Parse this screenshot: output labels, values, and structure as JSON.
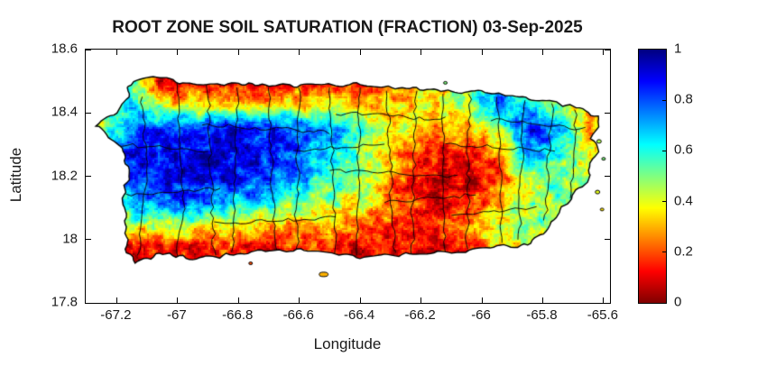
{
  "title": "ROOT ZONE SOIL SATURATION (FRACTION) 03-Sep-2025",
  "axes": {
    "xlabel": "Longitude",
    "ylabel": "Latitude",
    "xlim": [
      -67.302,
      -65.579
    ],
    "ylim": [
      17.8,
      18.6
    ],
    "xticks": [
      -67.2,
      -67,
      -66.8,
      -66.6,
      -66.4,
      -66.2,
      -66,
      -65.8,
      -65.6
    ],
    "xtick_labels": [
      "-67.2",
      "-67",
      "-66.8",
      "-66.6",
      "-66.4",
      "-66.2",
      "-66",
      "-65.8",
      "-65.6"
    ],
    "yticks": [
      18.6,
      18.4,
      18.2,
      18,
      17.8
    ],
    "ytick_labels": [
      "18.6",
      "18.4",
      "18.2",
      "18",
      "17.8"
    ]
  },
  "colorbar": {
    "min": 0,
    "max": 1,
    "ticks": [
      0,
      0.2,
      0.4,
      0.6,
      0.8,
      1
    ],
    "tick_labels": [
      "0",
      "0.2",
      "0.4",
      "0.6",
      "0.8",
      "1"
    ],
    "colors_bottom_to_top": [
      "#800000",
      "#ff0000",
      "#ff8000",
      "#ffff00",
      "#80ff80",
      "#00ffff",
      "#0080ff",
      "#0000ff",
      "#000080"
    ]
  },
  "chart_data": {
    "type": "heatmap",
    "title": "ROOT ZONE SOIL SATURATION (FRACTION) 03-Sep-2025",
    "value_name": "root zone soil saturation fraction",
    "region": "Puerto Rico",
    "colormap": "jet-reversed (1=dark blue wet, 0=dark red dry)",
    "value_range": [
      0,
      1
    ],
    "grid": {
      "lons": [
        -67.25,
        -67.15,
        -67.05,
        -66.95,
        -66.85,
        -66.75,
        -66.65,
        -66.55,
        -66.45,
        -66.35,
        -66.25,
        -66.15,
        -66.05,
        -65.95,
        -65.85,
        -65.75,
        -65.65
      ],
      "lats": [
        18.5,
        18.425,
        18.35,
        18.275,
        18.2,
        18.125,
        18.05,
        17.975,
        17.9
      ],
      "values": [
        [
          0.4,
          0.55,
          0.12,
          0.1,
          0.12,
          0.1,
          0.15,
          0.12,
          0.18,
          0.22,
          0.25,
          0.3,
          0.45,
          0.7,
          0.35,
          0.3,
          0.35
        ],
        [
          0.55,
          0.6,
          0.4,
          0.35,
          0.4,
          0.35,
          0.38,
          0.33,
          0.36,
          0.3,
          0.33,
          0.38,
          0.5,
          0.8,
          0.6,
          0.5,
          0.33
        ],
        [
          0.45,
          0.8,
          0.88,
          0.85,
          0.88,
          0.85,
          0.82,
          0.75,
          0.65,
          0.5,
          0.38,
          0.28,
          0.3,
          0.45,
          0.88,
          0.75,
          0.3
        ],
        [
          0.62,
          0.88,
          0.93,
          0.9,
          0.9,
          0.88,
          0.82,
          0.72,
          0.58,
          0.42,
          0.22,
          0.12,
          0.12,
          0.22,
          0.8,
          0.6,
          0.38
        ],
        [
          0.58,
          0.85,
          0.9,
          0.9,
          0.88,
          0.85,
          0.78,
          0.62,
          0.52,
          0.38,
          0.18,
          0.08,
          0.08,
          0.15,
          0.5,
          0.55,
          0.45
        ],
        [
          0.48,
          0.72,
          0.8,
          0.78,
          0.72,
          0.68,
          0.58,
          0.48,
          0.45,
          0.32,
          0.18,
          0.1,
          0.15,
          0.28,
          0.42,
          0.52,
          0.45
        ],
        [
          0.35,
          0.45,
          0.48,
          0.45,
          0.4,
          0.35,
          0.3,
          0.32,
          0.28,
          0.22,
          0.18,
          0.15,
          0.22,
          0.4,
          0.55,
          0.48,
          0.4
        ],
        [
          0.12,
          0.15,
          0.12,
          0.15,
          0.18,
          0.12,
          0.15,
          0.18,
          0.15,
          0.12,
          0.1,
          0.12,
          0.18,
          0.32,
          0.38,
          0.32,
          0.3
        ],
        [
          0.06,
          0.08,
          0.06,
          0.08,
          0.1,
          0.08,
          0.08,
          0.1,
          0.08,
          0.08,
          0.08,
          0.1,
          0.12,
          0.22,
          0.28,
          0.26,
          0.25
        ]
      ]
    }
  },
  "map": {
    "outline": [
      [
        -67.165,
        18.49
      ],
      [
        -67.08,
        18.515
      ],
      [
        -66.95,
        18.49
      ],
      [
        -66.8,
        18.49
      ],
      [
        -66.7,
        18.485
      ],
      [
        -66.55,
        18.485
      ],
      [
        -66.4,
        18.49
      ],
      [
        -66.25,
        18.48
      ],
      [
        -66.1,
        18.47
      ],
      [
        -65.99,
        18.465
      ],
      [
        -65.9,
        18.455
      ],
      [
        -65.8,
        18.44
      ],
      [
        -65.7,
        18.42
      ],
      [
        -65.62,
        18.39
      ],
      [
        -65.615,
        18.355
      ],
      [
        -65.64,
        18.32
      ],
      [
        -65.62,
        18.28
      ],
      [
        -65.65,
        18.24
      ],
      [
        -65.64,
        18.2
      ],
      [
        -65.68,
        18.16
      ],
      [
        -65.73,
        18.11
      ],
      [
        -65.76,
        18.06
      ],
      [
        -65.8,
        18.02
      ],
      [
        -65.85,
        17.985
      ],
      [
        -65.95,
        17.975
      ],
      [
        -66.1,
        17.96
      ],
      [
        -66.25,
        17.955
      ],
      [
        -66.4,
        17.945
      ],
      [
        -66.55,
        17.965
      ],
      [
        -66.7,
        17.97
      ],
      [
        -66.84,
        17.95
      ],
      [
        -66.95,
        17.94
      ],
      [
        -67.06,
        17.955
      ],
      [
        -67.14,
        17.925
      ],
      [
        -67.17,
        17.97
      ],
      [
        -67.17,
        18.05
      ],
      [
        -67.18,
        18.13
      ],
      [
        -67.16,
        18.21
      ],
      [
        -67.18,
        18.29
      ],
      [
        -67.27,
        18.36
      ],
      [
        -67.2,
        18.4
      ],
      [
        -67.16,
        18.45
      ]
    ],
    "islets": [
      {
        "lon": -66.52,
        "lat": 17.89,
        "rx": 5,
        "ry": 2.5,
        "v": 0.3
      },
      {
        "lon": -66.76,
        "lat": 17.925,
        "rx": 2,
        "ry": 1.5,
        "v": 0.2
      },
      {
        "lon": -65.615,
        "lat": 18.31,
        "rx": 2.5,
        "ry": 2,
        "v": 0.45
      },
      {
        "lon": -65.6,
        "lat": 18.255,
        "rx": 2,
        "ry": 1.5,
        "v": 0.5
      },
      {
        "lon": -65.62,
        "lat": 18.15,
        "rx": 2.5,
        "ry": 2,
        "v": 0.4
      },
      {
        "lon": -65.605,
        "lat": 18.095,
        "rx": 2,
        "ry": 1.5,
        "v": 0.35
      },
      {
        "lon": -66.12,
        "lat": 18.495,
        "rx": 2,
        "ry": 1.5,
        "v": 0.5
      }
    ],
    "boundaries": [
      [
        -67.125,
        18.45,
        -67.1,
        18.25
      ],
      [
        -67.1,
        18.25,
        -67.13,
        17.95
      ],
      [
        -67.0,
        18.5,
        -66.98,
        18.1
      ],
      [
        -66.98,
        18.1,
        -67.0,
        17.94
      ],
      [
        -66.9,
        18.49,
        -66.88,
        17.95
      ],
      [
        -66.8,
        18.48,
        -66.82,
        17.96
      ],
      [
        -66.7,
        18.48,
        -66.68,
        17.96
      ],
      [
        -66.6,
        18.48,
        -66.61,
        17.96
      ],
      [
        -66.5,
        18.48,
        -66.48,
        17.95
      ],
      [
        -66.4,
        18.48,
        -66.41,
        17.95
      ],
      [
        -66.31,
        18.47,
        -66.29,
        17.96
      ],
      [
        -66.22,
        18.47,
        -66.23,
        17.95
      ],
      [
        -66.13,
        18.46,
        -66.12,
        17.96
      ],
      [
        -66.04,
        18.46,
        -66.05,
        17.97
      ],
      [
        -65.95,
        18.45,
        -65.93,
        17.99
      ],
      [
        -65.86,
        18.44,
        -65.88,
        18.0
      ],
      [
        -65.77,
        18.43,
        -65.79,
        18.06
      ],
      [
        -65.69,
        18.41,
        -65.71,
        18.13
      ],
      [
        -67.2,
        18.3,
        -66.9,
        18.28
      ],
      [
        -67.17,
        18.14,
        -66.86,
        18.16
      ],
      [
        -66.92,
        18.36,
        -66.5,
        18.34
      ],
      [
        -66.88,
        18.05,
        -66.48,
        18.07
      ],
      [
        -66.5,
        18.22,
        -66.08,
        18.2
      ],
      [
        -66.48,
        18.4,
        -66.12,
        18.38
      ],
      [
        -66.12,
        18.3,
        -65.76,
        18.28
      ],
      [
        -66.1,
        18.08,
        -65.82,
        18.1
      ],
      [
        -65.97,
        18.38,
        -65.66,
        18.35
      ],
      [
        -66.32,
        18.12,
        -66.02,
        18.14
      ],
      [
        -66.62,
        18.28,
        -66.32,
        18.3
      ]
    ]
  }
}
